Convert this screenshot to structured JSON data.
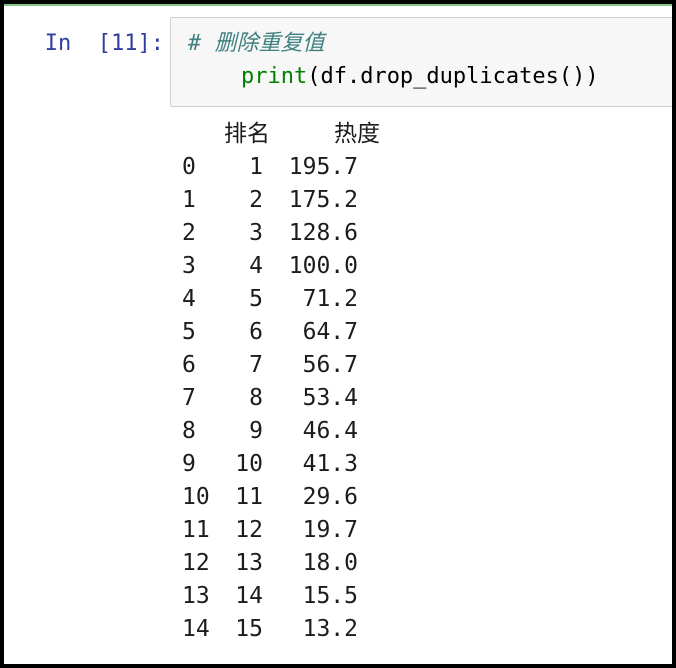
{
  "cell": {
    "prompt": "In  [11]:",
    "code": {
      "comment": "# 删除重复值",
      "indent": "    ",
      "keyword": "print",
      "call": "(df.drop_duplicates())"
    }
  },
  "output": {
    "columns": [
      "排名",
      "热度"
    ],
    "rows": [
      {
        "index": "0",
        "rank": "1",
        "heat": "195.7"
      },
      {
        "index": "1",
        "rank": "2",
        "heat": "175.2"
      },
      {
        "index": "2",
        "rank": "3",
        "heat": "128.6"
      },
      {
        "index": "3",
        "rank": "4",
        "heat": "100.0"
      },
      {
        "index": "4",
        "rank": "5",
        "heat": "71.2"
      },
      {
        "index": "5",
        "rank": "6",
        "heat": "64.7"
      },
      {
        "index": "6",
        "rank": "7",
        "heat": "56.7"
      },
      {
        "index": "7",
        "rank": "8",
        "heat": "53.4"
      },
      {
        "index": "8",
        "rank": "9",
        "heat": "46.4"
      },
      {
        "index": "9",
        "rank": "10",
        "heat": "41.3"
      },
      {
        "index": "10",
        "rank": "11",
        "heat": "29.6"
      },
      {
        "index": "11",
        "rank": "12",
        "heat": "19.7"
      },
      {
        "index": "12",
        "rank": "13",
        "heat": "18.0"
      },
      {
        "index": "13",
        "rank": "14",
        "heat": "15.5"
      },
      {
        "index": "14",
        "rank": "15",
        "heat": "13.2"
      }
    ]
  },
  "colors": {
    "frame_border": "#000000",
    "cell_divider_green": "#84c784",
    "prompt_text": "#303f9f",
    "comment_text": "#408080",
    "keyword_text": "#008000",
    "code_text": "#000000",
    "code_cell_bg": "#f7f7f7",
    "code_cell_border": "#cfcfcf",
    "output_text": "#1c1c1c",
    "page_bg": "#ffffff"
  }
}
